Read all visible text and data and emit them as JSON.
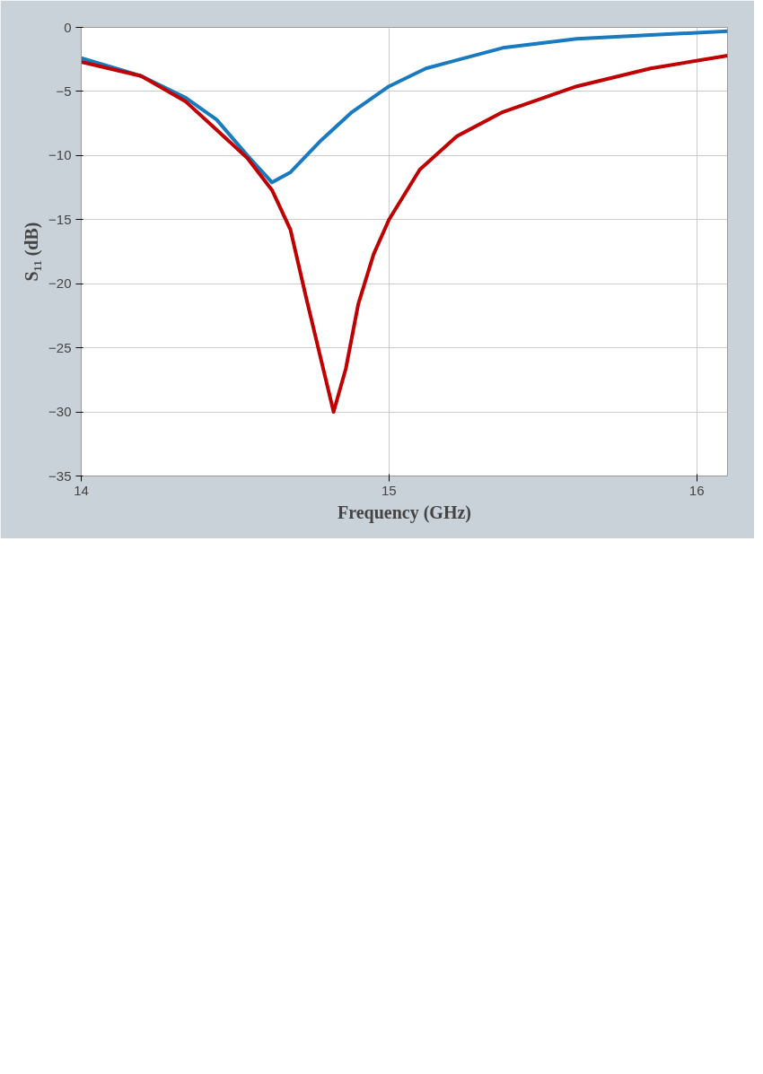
{
  "chart_data": {
    "type": "line",
    "xlabel": "Frequency (GHz)",
    "ylabel": "S₁₁ (dB)",
    "xlim": [
      14,
      16.1
    ],
    "xticks": [
      14,
      15,
      16
    ],
    "ylim": [
      -35,
      0
    ],
    "yticks": [
      0,
      -5,
      -10,
      -15,
      -20,
      -25,
      -30,
      -35
    ],
    "grid": true,
    "line_style": "solid",
    "series": [
      {
        "color": "#1a7abf",
        "x": [
          14.0,
          14.195,
          14.34,
          14.44,
          14.54,
          14.62,
          14.68,
          14.78,
          14.88,
          15.0,
          15.12,
          15.37,
          15.61,
          15.85,
          16.1
        ],
        "values": [
          -2.4,
          -3.8,
          -5.5,
          -7.2,
          -10,
          -12.1,
          -11.3,
          -8.8,
          -6.6,
          -4.6,
          -3.2,
          -1.6,
          -0.9,
          -0.6,
          -0.3
        ]
      },
      {
        "color": "#c00000",
        "x": [
          14.0,
          14.195,
          14.34,
          14.44,
          14.54,
          14.62,
          14.68,
          14.73,
          14.78,
          14.82,
          14.86,
          14.9,
          14.95,
          15.0,
          15.1,
          15.22,
          15.37,
          15.61,
          15.85,
          16.1
        ],
        "values": [
          -2.7,
          -3.8,
          -5.8,
          -8.0,
          -10.2,
          -12.7,
          -15.8,
          -21,
          -26,
          -30,
          -26.6,
          -21.6,
          -17.7,
          -15,
          -11.1,
          -8.5,
          -6.6,
          -4.6,
          -3.2,
          -2.2
        ]
      }
    ]
  }
}
